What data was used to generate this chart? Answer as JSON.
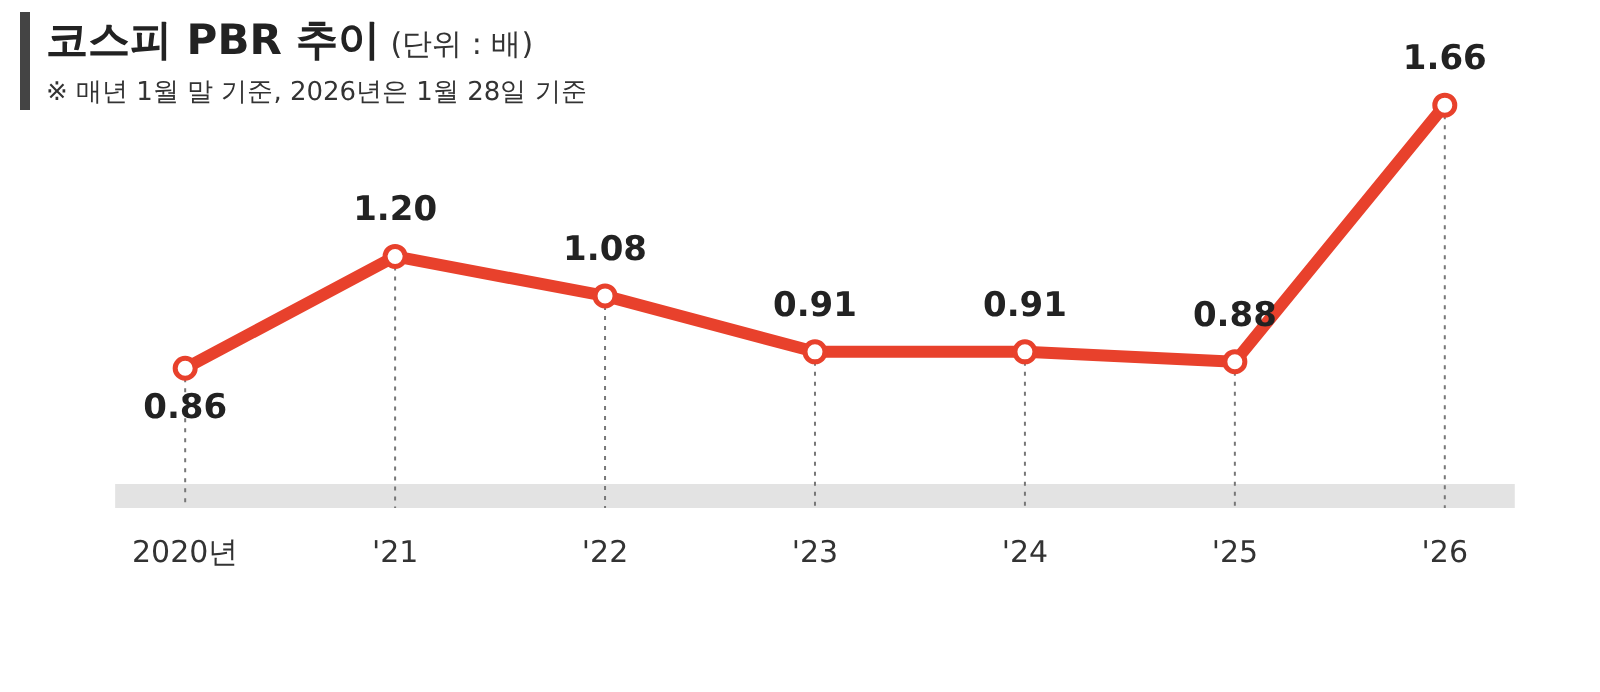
{
  "chart_data": {
    "type": "line",
    "title": "코스피 PBR 추이",
    "subtitle": "(단위 : 배)",
    "annotations": [
      "※ 매년 1월 말 기준, 2026년은 1월 28일 기준"
    ],
    "categories": [
      "2020년",
      "'21",
      "'22",
      "'23",
      "'24",
      "'25",
      "'26"
    ],
    "values": [
      0.86,
      1.2,
      1.08,
      0.91,
      0.91,
      0.88,
      1.66
    ],
    "value_labels": [
      "0.86",
      "1.20",
      "1.08",
      "0.91",
      "0.91",
      "0.88",
      "1.66"
    ],
    "color": "#e8412c",
    "marker": "circle",
    "line_style": "solid",
    "grid": "x",
    "legend": false,
    "tick_labels": "x"
  }
}
